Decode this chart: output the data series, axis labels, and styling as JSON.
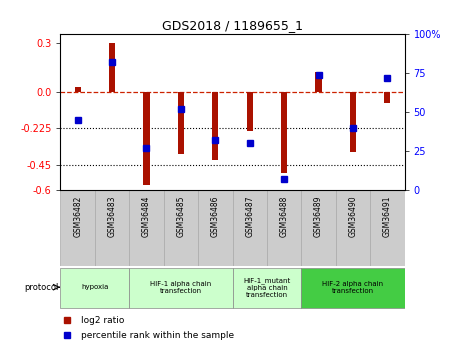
{
  "title": "GDS2018 / 1189655_1",
  "samples": [
    "GSM36482",
    "GSM36483",
    "GSM36484",
    "GSM36485",
    "GSM36486",
    "GSM36487",
    "GSM36488",
    "GSM36489",
    "GSM36490",
    "GSM36491"
  ],
  "log2_ratio": [
    0.03,
    0.3,
    -0.57,
    -0.38,
    -0.42,
    -0.24,
    -0.5,
    0.12,
    -0.37,
    -0.07
  ],
  "percentile_rank": [
    45,
    82,
    27,
    52,
    32,
    30,
    7,
    74,
    40,
    72
  ],
  "ylim_left": [
    -0.6,
    0.35
  ],
  "ylim_right": [
    0,
    100
  ],
  "yticks_left": [
    0.3,
    0.0,
    -0.225,
    -0.45,
    -0.6
  ],
  "yticks_right": [
    100,
    75,
    50,
    25,
    0
  ],
  "hlines": [
    -0.225,
    -0.45
  ],
  "bar_color": "#AA1100",
  "scatter_color": "#0000CC",
  "dashed_color": "#CC2200",
  "protocols": [
    {
      "label": "hypoxia",
      "samples": [
        0,
        1
      ],
      "color": "#ccffcc"
    },
    {
      "label": "HIF-1 alpha chain\ntransfection",
      "samples": [
        2,
        3,
        4
      ],
      "color": "#ccffcc"
    },
    {
      "label": "HIF-1_mutant\nalpha chain\ntransfection",
      "samples": [
        5,
        6
      ],
      "color": "#ccffcc"
    },
    {
      "label": "HIF-2 alpha chain\ntransfection",
      "samples": [
        7,
        8,
        9
      ],
      "color": "#44cc44"
    }
  ],
  "bg_color": "#ffffff",
  "sample_box_color": "#cccccc",
  "bar_width": 0.18
}
